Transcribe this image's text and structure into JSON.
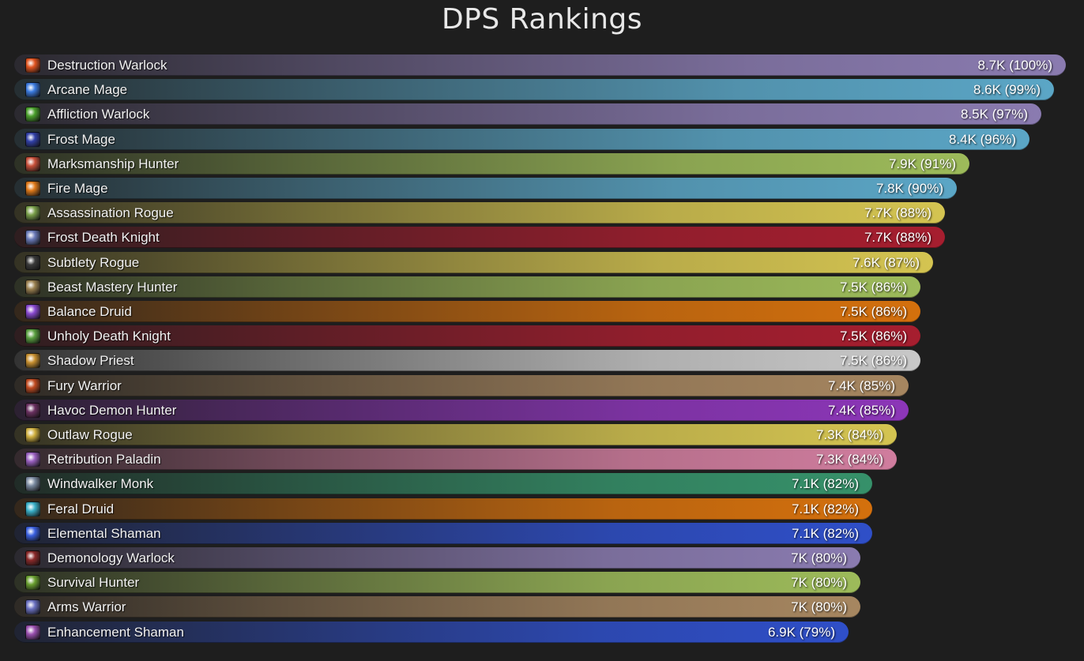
{
  "chart_data": {
    "type": "bar",
    "orientation": "horizontal",
    "title": "DPS Rankings",
    "max_value": 8.7,
    "unit": "K",
    "categories": [
      "Destruction Warlock",
      "Arcane Mage",
      "Affliction Warlock",
      "Frost Mage",
      "Marksmanship Hunter",
      "Fire Mage",
      "Assassination Rogue",
      "Frost Death Knight",
      "Subtlety Rogue",
      "Beast Mastery Hunter",
      "Balance Druid",
      "Unholy Death Knight",
      "Shadow Priest",
      "Fury Warrior",
      "Havoc Demon Hunter",
      "Outlaw Rogue",
      "Retribution Paladin",
      "Windwalker Monk",
      "Feral Druid",
      "Elemental Shaman",
      "Demonology Warlock",
      "Survival Hunter",
      "Arms Warrior",
      "Enhancement Shaman"
    ],
    "values": [
      8.7,
      8.6,
      8.5,
      8.4,
      7.9,
      7.8,
      7.7,
      7.7,
      7.6,
      7.5,
      7.5,
      7.5,
      7.5,
      7.4,
      7.4,
      7.3,
      7.3,
      7.1,
      7.1,
      7.1,
      7.0,
      7.0,
      7.0,
      6.9
    ],
    "value_labels": [
      "8.7K (100%)",
      "8.6K (99%)",
      "8.5K (97%)",
      "8.4K (96%)",
      "7.9K (91%)",
      "7.8K (90%)",
      "7.7K (88%)",
      "7.7K (88%)",
      "7.6K (87%)",
      "7.5K (86%)",
      "7.5K (86%)",
      "7.5K (86%)",
      "7.5K (86%)",
      "7.4K (85%)",
      "7.4K (85%)",
      "7.3K (84%)",
      "7.3K (84%)",
      "7.1K (82%)",
      "7.1K (82%)",
      "7.1K (82%)",
      "7K (80%)",
      "7K (80%)",
      "7K (80%)",
      "6.9K (79%)"
    ],
    "bar_colors": [
      "#8a7bb0",
      "#5ba6c6",
      "#8a7bb0",
      "#5ba6c6",
      "#9dbb5a",
      "#5ba6c6",
      "#d4c451",
      "#a61e2f",
      "#d4c451",
      "#9dbb5a",
      "#d4700d",
      "#a61e2f",
      "#c8c8c8",
      "#a68660",
      "#8c36b8",
      "#d4c451",
      "#d07d9e",
      "#36916a",
      "#d4700d",
      "#2f4fc8",
      "#8a7bb0",
      "#9dbb5a",
      "#a68660",
      "#2f4fc8"
    ],
    "icons": [
      "destruction-warlock-icon",
      "arcane-mage-icon",
      "affliction-warlock-icon",
      "frost-mage-icon",
      "marksmanship-hunter-icon",
      "fire-mage-icon",
      "assassination-rogue-icon",
      "frost-death-knight-icon",
      "subtlety-rogue-icon",
      "beast-mastery-hunter-icon",
      "balance-druid-icon",
      "unholy-death-knight-icon",
      "shadow-priest-icon",
      "fury-warrior-icon",
      "havoc-demon-hunter-icon",
      "outlaw-rogue-icon",
      "retribution-paladin-icon",
      "windwalker-monk-icon",
      "feral-druid-icon",
      "elemental-shaman-icon",
      "demonology-warlock-icon",
      "survival-hunter-icon",
      "arms-warrior-icon",
      "enhancement-shaman-icon"
    ],
    "icon_colors": [
      "#e0531f",
      "#3b7be0",
      "#4aa02c",
      "#3140a8",
      "#c8503a",
      "#e07a1a",
      "#7aa04a",
      "#6a7ab8",
      "#3a3a3a",
      "#9a8050",
      "#8a4ad0",
      "#5aa040",
      "#c89030",
      "#c04a20",
      "#6a3060",
      "#d0b040",
      "#9a60c0",
      "#7a8aa0",
      "#3ab0c8",
      "#3a60e0",
      "#8a2a2a",
      "#6aa030",
      "#6a70c0",
      "#9a50b0"
    ]
  }
}
